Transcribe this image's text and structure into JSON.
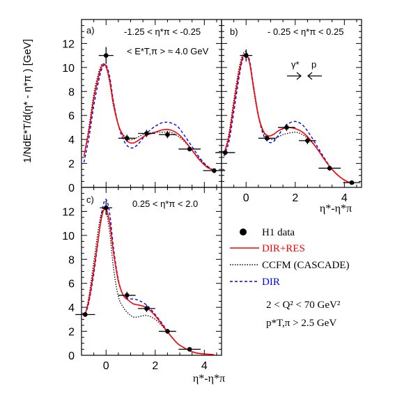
{
  "chart_data": [
    {
      "type": "line",
      "panel_label": "a)",
      "cut_line1": "-1.25 < η*π < -0.25",
      "cut_line2": "< E*T,π > ≈ 4.0 GeV",
      "ylabel": "1/NdE*T/d(η* - η*π ) [GeV]",
      "xlabel": "",
      "xlim": [
        -1.0,
        4.7
      ],
      "ylim": [
        0,
        14
      ],
      "yticks": [
        0,
        2,
        4,
        6,
        8,
        10,
        12
      ],
      "data": {
        "name": "H1 data",
        "points": [
          {
            "x": 0.0,
            "y": 11.0,
            "xerr": 0.3,
            "yerr": 0.7
          },
          {
            "x": 0.85,
            "y": 4.1,
            "xerr": 0.35,
            "yerr": 0.3
          },
          {
            "x": 1.65,
            "y": 4.5,
            "xerr": 0.35,
            "yerr": 0.3
          },
          {
            "x": 2.5,
            "y": 4.4,
            "xerr": 0.35,
            "yerr": 0.3
          },
          {
            "x": 3.4,
            "y": 3.2,
            "xerr": 0.45,
            "yerr": 0.2
          },
          {
            "x": 4.4,
            "y": 1.4,
            "xerr": 0.45,
            "yerr": 0.2
          }
        ]
      },
      "curves": [
        {
          "name": "DIR+RES",
          "x": [
            -0.9,
            -0.7,
            -0.5,
            -0.3,
            -0.15,
            0.0,
            0.15,
            0.3,
            0.5,
            0.7,
            0.9,
            1.1,
            1.3,
            1.5,
            1.7,
            2.0,
            2.3,
            2.6,
            2.9,
            3.2,
            3.5,
            3.8,
            4.1,
            4.4
          ],
          "y": [
            2.6,
            4.7,
            7.4,
            9.3,
            10.2,
            10.1,
            8.9,
            7.0,
            5.2,
            4.3,
            3.8,
            3.7,
            3.9,
            4.2,
            4.4,
            4.6,
            4.8,
            4.8,
            4.5,
            3.9,
            3.1,
            2.3,
            1.7,
            1.4
          ]
        },
        {
          "name": "CCFM (CASCADE)",
          "x": [
            -0.9,
            -0.7,
            -0.5,
            -0.3,
            -0.15,
            0.0,
            0.15,
            0.3,
            0.5,
            0.7,
            0.9,
            1.1,
            1.3,
            1.5,
            1.7,
            2.0,
            2.3,
            2.6,
            2.9,
            3.2,
            3.5,
            3.8,
            4.1,
            4.4
          ],
          "y": [
            2.6,
            5.0,
            7.8,
            9.6,
            10.3,
            10.0,
            8.7,
            6.8,
            5.2,
            4.4,
            4.0,
            4.0,
            4.2,
            4.4,
            4.5,
            4.6,
            4.6,
            4.6,
            4.3,
            3.8,
            3.1,
            2.4,
            1.8,
            1.4
          ]
        },
        {
          "name": "DIR",
          "x": [
            -0.9,
            -0.7,
            -0.5,
            -0.3,
            -0.15,
            0.0,
            0.15,
            0.3,
            0.5,
            0.7,
            0.9,
            1.1,
            1.3,
            1.5,
            1.7,
            2.0,
            2.3,
            2.6,
            2.9,
            3.2,
            3.5,
            3.8,
            4.1,
            4.4
          ],
          "y": [
            2.1,
            4.1,
            6.8,
            8.9,
            10.0,
            10.2,
            9.2,
            7.2,
            5.2,
            4.0,
            3.4,
            3.3,
            3.6,
            4.1,
            4.6,
            5.1,
            5.4,
            5.4,
            5.1,
            4.3,
            3.4,
            2.5,
            1.8,
            1.4
          ]
        }
      ]
    },
    {
      "type": "line",
      "panel_label": "b)",
      "cut_line1": "- 0.25 < η*π < 0.25",
      "arrow_labels": [
        "γ*",
        "p"
      ],
      "xlabel": "η*-η*π",
      "xlim": [
        -1.0,
        4.7
      ],
      "ylim": [
        0,
        14
      ],
      "xticks": [
        0,
        2,
        4
      ],
      "data": {
        "name": "H1 data",
        "points": [
          {
            "x": -0.85,
            "y": 2.9,
            "xerr": 0.4,
            "yerr": 0.2
          },
          {
            "x": 0.0,
            "y": 11.0,
            "xerr": 0.25,
            "yerr": 0.5
          },
          {
            "x": 0.85,
            "y": 4.1,
            "xerr": 0.35,
            "yerr": 0.2
          },
          {
            "x": 1.65,
            "y": 5.0,
            "xerr": 0.35,
            "yerr": 0.3
          },
          {
            "x": 2.5,
            "y": 3.9,
            "xerr": 0.35,
            "yerr": 0.3
          },
          {
            "x": 3.4,
            "y": 1.6,
            "xerr": 0.45,
            "yerr": 0.2
          },
          {
            "x": 4.3,
            "y": 0.4,
            "xerr": 0.35,
            "yerr": 0.1
          }
        ]
      },
      "curves": [
        {
          "name": "DIR+RES",
          "x": [
            -0.9,
            -0.7,
            -0.5,
            -0.3,
            -0.15,
            0.0,
            0.15,
            0.3,
            0.5,
            0.7,
            0.9,
            1.1,
            1.3,
            1.5,
            1.7,
            2.0,
            2.3,
            2.6,
            2.9,
            3.2,
            3.5,
            3.8,
            4.1,
            4.4
          ],
          "y": [
            2.8,
            4.2,
            6.9,
            9.4,
            10.8,
            11.1,
            10.3,
            8.4,
            6.0,
            4.7,
            4.3,
            4.4,
            4.7,
            4.9,
            5.0,
            4.9,
            4.6,
            4.0,
            3.2,
            2.3,
            1.5,
            0.9,
            0.5,
            0.3
          ]
        },
        {
          "name": "CCFM (CASCADE)",
          "x": [
            -0.9,
            -0.7,
            -0.5,
            -0.3,
            -0.15,
            0.0,
            0.15,
            0.3,
            0.5,
            0.7,
            0.9,
            1.1,
            1.3,
            1.5,
            1.7,
            2.0,
            2.3,
            2.6,
            2.9,
            3.2,
            3.5,
            3.8,
            4.1,
            4.4
          ],
          "y": [
            2.8,
            4.5,
            7.3,
            9.8,
            11.0,
            11.3,
            10.3,
            8.2,
            5.9,
            4.6,
            4.1,
            4.0,
            4.2,
            4.4,
            4.5,
            4.6,
            4.4,
            3.9,
            3.2,
            2.3,
            1.5,
            0.9,
            0.5,
            0.3
          ]
        },
        {
          "name": "DIR",
          "x": [
            -0.9,
            -0.7,
            -0.5,
            -0.3,
            -0.15,
            0.0,
            0.15,
            0.3,
            0.5,
            0.7,
            0.9,
            1.1,
            1.3,
            1.5,
            1.7,
            2.0,
            2.3,
            2.6,
            2.9,
            3.2,
            3.5,
            3.8,
            4.1,
            4.4
          ],
          "y": [
            2.6,
            3.8,
            6.3,
            9.0,
            10.6,
            11.2,
            10.5,
            8.5,
            6.0,
            4.4,
            3.8,
            3.8,
            4.3,
            4.9,
            5.3,
            5.5,
            5.2,
            4.4,
            3.4,
            2.4,
            1.5,
            0.9,
            0.5,
            0.3
          ]
        }
      ]
    },
    {
      "type": "line",
      "panel_label": "c)",
      "cut_line1": "0.25 < η*π < 2.0",
      "xlabel": "η*-η*π",
      "xlim": [
        -1.0,
        4.7
      ],
      "ylim": [
        0,
        14
      ],
      "xticks": [
        0,
        2,
        4
      ],
      "yticks": [
        0,
        2,
        4,
        6,
        8,
        10,
        12
      ],
      "data": {
        "name": "H1 data",
        "points": [
          {
            "x": -0.85,
            "y": 3.4,
            "xerr": 0.4,
            "yerr": 0.2
          },
          {
            "x": 0.0,
            "y": 12.3,
            "xerr": 0.25,
            "yerr": 0.6
          },
          {
            "x": 0.85,
            "y": 5.0,
            "xerr": 0.35,
            "yerr": 0.3
          },
          {
            "x": 1.65,
            "y": 3.9,
            "xerr": 0.35,
            "yerr": 0.3
          },
          {
            "x": 2.5,
            "y": 2.0,
            "xerr": 0.35,
            "yerr": 0.2
          },
          {
            "x": 3.4,
            "y": 0.5,
            "xerr": 0.45,
            "yerr": 0.1
          }
        ]
      },
      "curves": [
        {
          "name": "DIR+RES",
          "x": [
            -0.85,
            -0.7,
            -0.5,
            -0.3,
            -0.15,
            0.0,
            0.15,
            0.3,
            0.5,
            0.7,
            0.9,
            1.1,
            1.3,
            1.5,
            1.7,
            2.0,
            2.3,
            2.6,
            2.9,
            3.2,
            3.5,
            3.8,
            4.1,
            4.4
          ],
          "y": [
            3.4,
            4.6,
            7.1,
            10.0,
            11.8,
            12.2,
            11.0,
            8.6,
            6.2,
            5.0,
            4.6,
            4.3,
            4.2,
            4.1,
            3.9,
            3.3,
            2.5,
            1.7,
            1.0,
            0.6,
            0.3,
            0.15,
            0.1,
            0.05
          ]
        },
        {
          "name": "CCFM (CASCADE)",
          "x": [
            -0.85,
            -0.7,
            -0.5,
            -0.3,
            -0.15,
            0.0,
            0.15,
            0.3,
            0.5,
            0.7,
            0.9,
            1.1,
            1.3,
            1.5,
            1.7,
            2.0,
            2.3,
            2.6,
            2.9,
            3.2,
            3.5,
            3.8,
            4.1,
            4.4
          ],
          "y": [
            3.4,
            4.9,
            7.8,
            10.7,
            12.1,
            12.0,
            10.2,
            7.3,
            4.9,
            4.0,
            3.5,
            3.2,
            3.2,
            3.3,
            3.3,
            3.0,
            2.4,
            1.7,
            1.0,
            0.6,
            0.3,
            0.15,
            0.1,
            0.05
          ]
        },
        {
          "name": "DIR",
          "x": [
            -0.85,
            -0.7,
            -0.5,
            -0.3,
            -0.15,
            0.0,
            0.15,
            0.3,
            0.5,
            0.7,
            0.9,
            1.1,
            1.3,
            1.5,
            1.7,
            2.0,
            2.3,
            2.6,
            2.9,
            3.2,
            3.5,
            3.8,
            4.1,
            4.4
          ],
          "y": [
            3.4,
            4.4,
            6.8,
            9.9,
            12.2,
            13.0,
            11.8,
            9.0,
            6.3,
            5.0,
            4.7,
            4.7,
            4.6,
            4.4,
            4.1,
            3.4,
            2.6,
            1.7,
            1.0,
            0.6,
            0.3,
            0.15,
            0.1,
            0.05
          ]
        }
      ]
    }
  ],
  "legend": {
    "items": [
      {
        "label": "H1 data",
        "style": "marker",
        "color": "#000000"
      },
      {
        "label": "DIR+RES",
        "style": "solid",
        "color": "#ff0000"
      },
      {
        "label": "CCFM (CASCADE)",
        "style": "dotted",
        "color": "#000000"
      },
      {
        "label": "DIR",
        "style": "dashed",
        "color": "#0000ff"
      }
    ],
    "cuts": [
      "2 < Q² < 70 GeV²",
      "p*T,π > 2.5 GeV"
    ]
  }
}
